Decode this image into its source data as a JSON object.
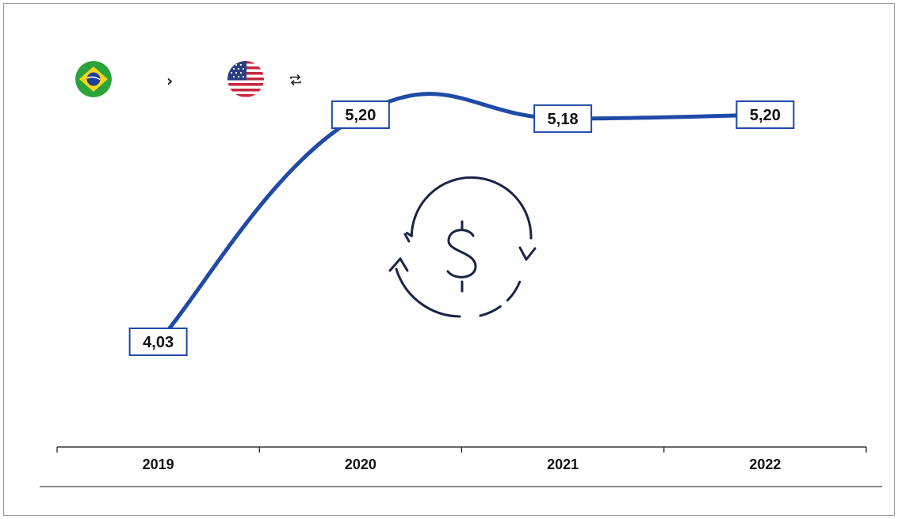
{
  "header": {
    "from_flag_icon": "brazil-flag-icon",
    "arrow_icon": "chevron-right-icon",
    "to_flag_icon": "usa-flag-icon",
    "swap_icon": "swap-arrows-icon",
    "chevron_glyph": "›"
  },
  "center_icon": "currency-exchange-dollar-icon",
  "colors": {
    "line": "#1f4aa8",
    "label_border": "#1f4aa8",
    "icon": "#1b2446",
    "axis": "#111111"
  },
  "chart_data": {
    "type": "line",
    "categories": [
      "2019",
      "2020",
      "2021",
      "2022"
    ],
    "values": [
      4.03,
      5.2,
      5.18,
      5.2
    ],
    "data_labels": [
      "4,03",
      "5,20",
      "5,18",
      "5,20"
    ],
    "title": "",
    "xlabel": "",
    "ylabel": "",
    "grid": false
  }
}
